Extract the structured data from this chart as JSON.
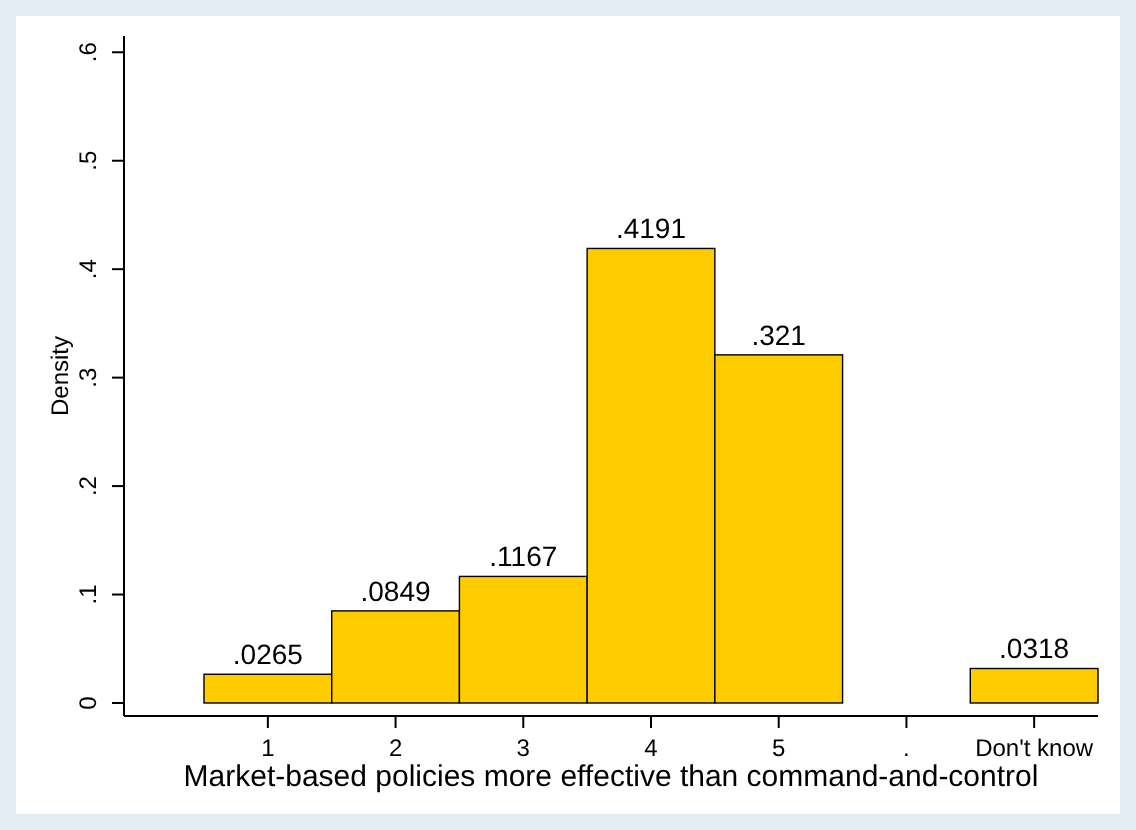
{
  "chart_data": {
    "type": "bar",
    "xlabel": "Market-based policies more effective than command-and-control",
    "ylabel": "Density",
    "categories": [
      "1",
      "2",
      "3",
      "4",
      "5",
      ".",
      "Don't know"
    ],
    "values": [
      0.0265,
      0.0849,
      0.1167,
      0.4191,
      0.321,
      null,
      0.0318
    ],
    "value_labels": [
      ".0265",
      ".0849",
      ".1167",
      ".4191",
      ".321",
      null,
      ".0318"
    ],
    "color": "#ffcc00",
    "ylim": [
      -0.012,
      0.615
    ],
    "yticks": [
      0,
      {
        "value": 0.1,
        "label": ".1"
      },
      {
        "value": 0.2,
        "label": ".2"
      },
      {
        "value": 0.3,
        "label": ".3"
      },
      {
        "value": 0.4,
        "label": ".4"
      },
      {
        "value": 0.5,
        "label": ".5"
      },
      {
        "value": 0.6,
        "label": ".6"
      }
    ],
    "grid": false
  }
}
